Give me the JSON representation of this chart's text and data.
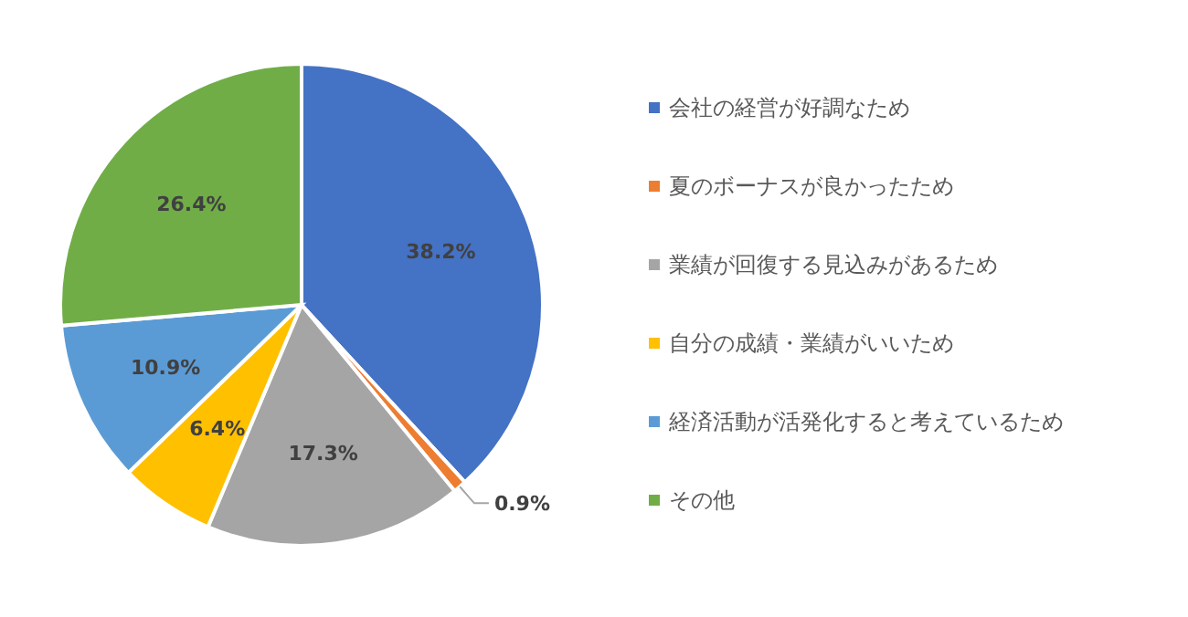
{
  "chart_data": {
    "type": "pie",
    "categories": [
      "会社の経営が好調なため",
      "夏のボーナスが良かったため",
      "業績が回復する見込みがあるため",
      "自分の成績・業績がいいため",
      "経済活動が活発化すると考えているため",
      "その他"
    ],
    "values": [
      38.2,
      0.9,
      17.3,
      6.4,
      10.9,
      26.4
    ],
    "value_labels": [
      "38.2%",
      "0.9%",
      "17.3%",
      "6.4%",
      "10.9%",
      "26.4%"
    ],
    "colors": [
      "#4472c4",
      "#ed7d31",
      "#a5a5a5",
      "#ffc000",
      "#5b9bd5",
      "#70ad47"
    ],
    "legend": "right"
  }
}
